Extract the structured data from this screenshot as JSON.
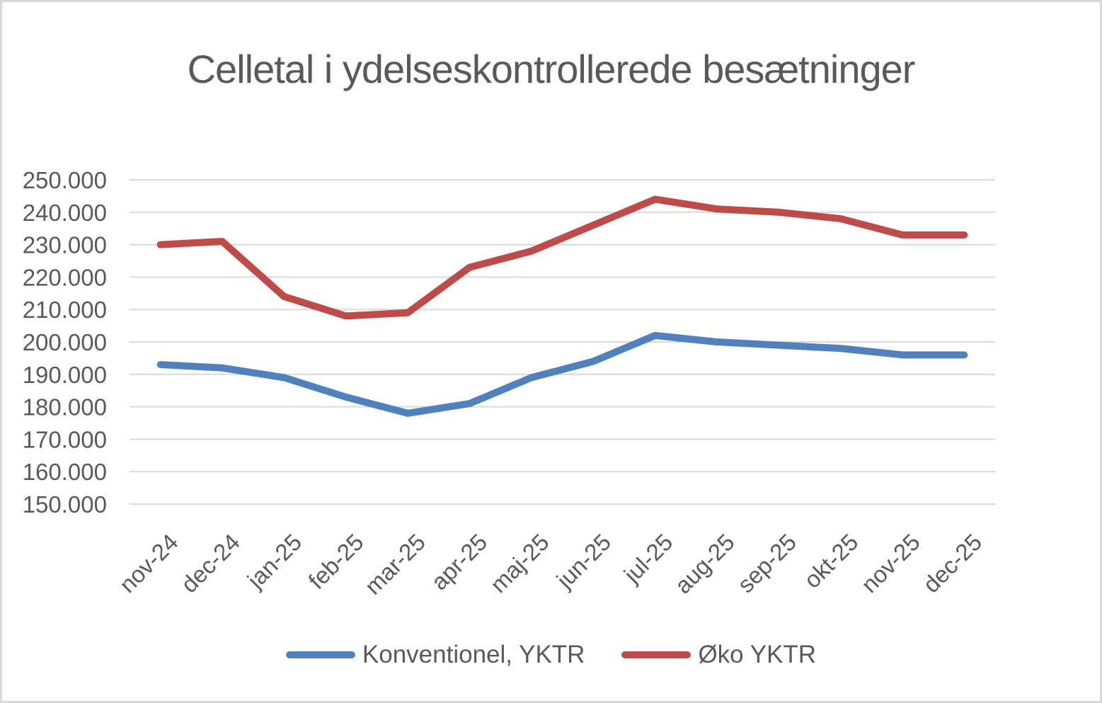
{
  "chart_data": {
    "type": "line",
    "title": "Celletal i ydelseskontrollerede besætninger",
    "categories": [
      "nov-24",
      "dec-24",
      "jan-25",
      "feb-25",
      "mar-25",
      "apr-25",
      "maj-25",
      "jun-25",
      "jul-25",
      "aug-25",
      "sep-25",
      "okt-25",
      "nov-25",
      "dec-25"
    ],
    "series": [
      {
        "name": "Konventionel, YKTR",
        "color": "#4F81BD",
        "values": [
          193000,
          192000,
          189000,
          183000,
          178000,
          181000,
          189000,
          194000,
          202000,
          200000,
          199000,
          198000,
          196000,
          196000
        ]
      },
      {
        "name": "Øko YKTR",
        "color": "#BE4B48",
        "values": [
          230000,
          231000,
          214000,
          208000,
          209000,
          223000,
          228000,
          236000,
          244000,
          241000,
          240000,
          238000,
          233000,
          233000
        ]
      }
    ],
    "ylim": [
      150000,
      250000
    ],
    "ytick_step": 10000,
    "ytick_labels": [
      "150.000",
      "160.000",
      "170.000",
      "180.000",
      "190.000",
      "200.000",
      "210.000",
      "220.000",
      "230.000",
      "240.000",
      "250.000"
    ],
    "grid": "horizontal-only",
    "legend_position": "bottom",
    "x_label_rotation_deg": -45,
    "colors": {
      "background": "#FFFFFF",
      "frame_border": "#D9D9D9",
      "gridline": "#D9D9D9",
      "text": "#595959"
    }
  }
}
